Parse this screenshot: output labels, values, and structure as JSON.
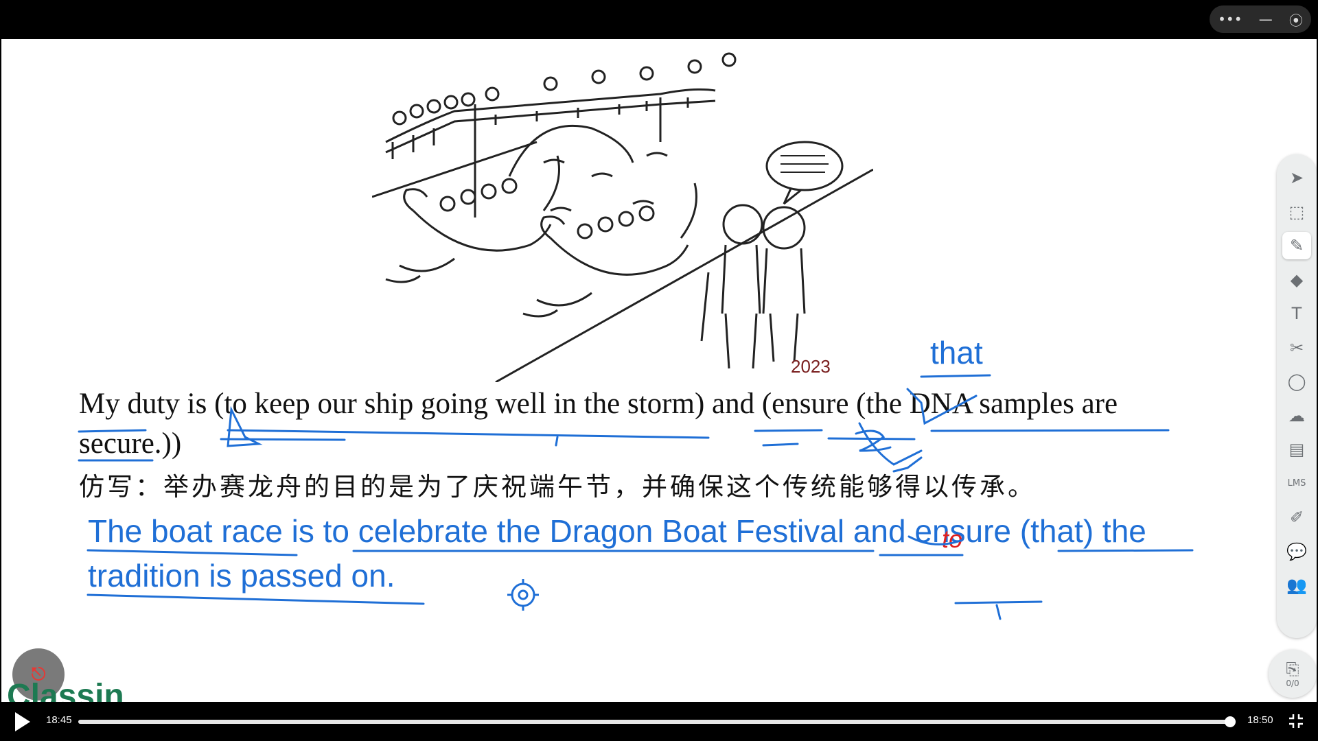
{
  "window_controls": [
    "•••",
    "—",
    "⦿"
  ],
  "illustration": {
    "description_icon": "dragon-boat-illustration-icon",
    "year": "2023"
  },
  "sentence": {
    "line1": "My duty is (to keep our ship going well in the storm) and (ensure (the DNA samples are",
    "line2": "secure.))"
  },
  "chinese": "仿写：举办赛龙舟的目的是为了庆祝端午节，并确保这个传统能够得以传承。",
  "answer": {
    "line1": "The boat race is to celebrate the Dragon Boat Festival and ensure (that) the",
    "line2": "tradition is passed on."
  },
  "annotations": {
    "that": "that",
    "to": "to"
  },
  "logo_text": "Classin",
  "toolbar": {
    "tools": [
      {
        "icon": "pointer-icon",
        "glyph": "➤"
      },
      {
        "icon": "selection-icon",
        "glyph": "⬚"
      },
      {
        "icon": "pen-icon",
        "glyph": "✎"
      },
      {
        "icon": "eraser-icon",
        "glyph": "◆"
      },
      {
        "icon": "text-icon",
        "glyph": "T"
      },
      {
        "icon": "scissors-icon",
        "glyph": "✂"
      },
      {
        "icon": "shape-icon",
        "glyph": "◯"
      },
      {
        "icon": "cloud-icon",
        "glyph": "☁"
      },
      {
        "icon": "toolbox-icon",
        "glyph": "▤"
      },
      {
        "icon": "lms-icon",
        "glyph": "LMS"
      },
      {
        "icon": "edit-icon",
        "glyph": "✐"
      },
      {
        "icon": "chat-icon",
        "glyph": "💬"
      },
      {
        "icon": "users-icon",
        "glyph": "👥"
      }
    ],
    "active_index": 2
  },
  "page_counter": "0/0",
  "player": {
    "current_time": "18:45",
    "total_time": "18:50",
    "progress": 0.9955
  },
  "colors": {
    "ink_blue": "#1f6fd6",
    "ink_red": "#e02020",
    "logo_green": "#1d7a52"
  }
}
